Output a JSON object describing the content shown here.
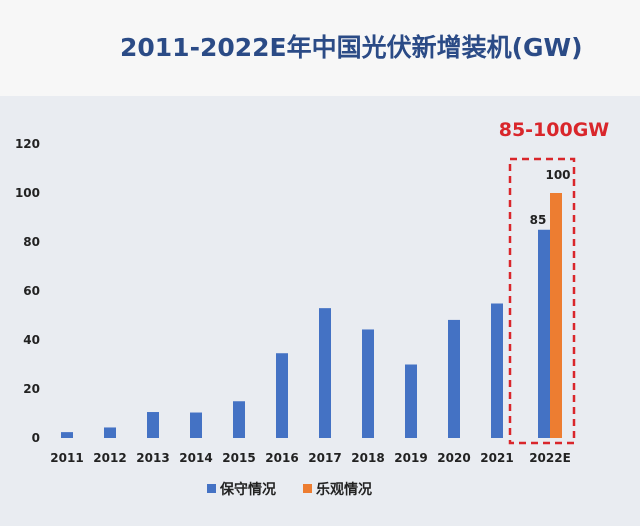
{
  "chart_data": {
    "type": "bar",
    "title": "2011-2022E年中国光伏新增装机(GW)",
    "categories": [
      "2011",
      "2012",
      "2013",
      "2014",
      "2015",
      "2016",
      "2017",
      "2018",
      "2019",
      "2020",
      "2021",
      "2022E"
    ],
    "series": [
      {
        "name": "保守情况",
        "color": "#4472c4",
        "values": [
          2.4,
          4.3,
          10.6,
          10.4,
          15.0,
          34.6,
          53.0,
          44.3,
          30.0,
          48.2,
          54.9,
          85
        ]
      },
      {
        "name": "乐观情况",
        "color": "#ed7d31",
        "values": [
          null,
          null,
          null,
          null,
          null,
          null,
          null,
          null,
          null,
          null,
          null,
          100
        ]
      }
    ],
    "data_labels": {
      "保守情况_2022E": "85",
      "乐观情况_2022E": "100"
    },
    "annotation": "85-100GW",
    "annotation_color": "#d9262b",
    "ylim": [
      0,
      120
    ],
    "yticks": [
      "0",
      "20",
      "40",
      "60",
      "80",
      "100",
      "120"
    ],
    "grid": false,
    "legend": "bottom"
  }
}
